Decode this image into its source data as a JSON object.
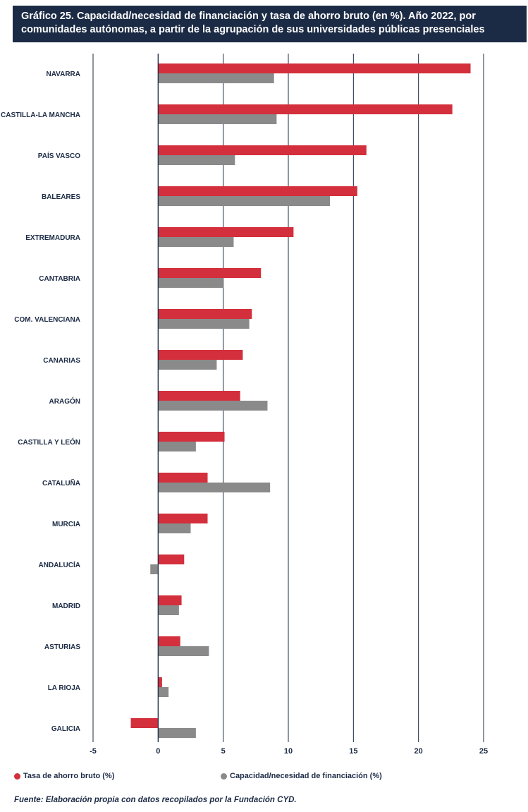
{
  "header": {
    "title_line1": "Gráfico 25. Capacidad/necesidad de financiación y tasa de ahorro bruto (en %). Año 2022, por",
    "title_line2": "comunidades autónomas, a partir de la agrupación de sus universidades públicas presenciales"
  },
  "footer": {
    "source": "Fuente: Elaboración propia con datos recopilados por la Fundación CYD."
  },
  "colors": {
    "series_1": "#d32f3c",
    "series_2": "#8a8a8a",
    "gridline": "#1c2b45",
    "text": "#1c2b45"
  },
  "chart_data": {
    "type": "bar",
    "orientation": "horizontal",
    "categories": [
      "NAVARRA",
      "CASTILLA-LA MANCHA",
      "PAÍS VASCO",
      "BALEARES",
      "EXTREMADURA",
      "CANTABRIA",
      "COM. VALENCIANA",
      "CANARIAS",
      "ARAGÓN",
      "CASTILLA Y LEÓN",
      "CATALUÑA",
      "MURCIA",
      "ANDALUCÍA",
      "MADRID",
      "ASTURIAS",
      "LA RIOJA",
      "GALICIA"
    ],
    "series": [
      {
        "name": "Tasa de ahorro bruto (%)",
        "values": [
          24.0,
          22.6,
          16.0,
          15.3,
          10.4,
          7.9,
          7.2,
          6.5,
          6.3,
          5.1,
          3.8,
          3.8,
          2.0,
          1.8,
          1.7,
          0.3,
          -2.1
        ]
      },
      {
        "name": "Capacidad/necesidad de financiación (%)",
        "values": [
          8.9,
          9.1,
          5.9,
          13.2,
          5.8,
          5.0,
          7.0,
          4.5,
          8.4,
          2.9,
          8.6,
          2.5,
          -0.6,
          1.6,
          3.9,
          0.8,
          2.9
        ]
      }
    ],
    "x_ticks": [
      -5,
      0,
      5,
      10,
      15,
      20,
      25
    ],
    "xlim": [
      -5,
      25
    ],
    "title": "",
    "xlabel": "",
    "ylabel": "",
    "grid": "vertical",
    "legend_position": "bottom"
  }
}
